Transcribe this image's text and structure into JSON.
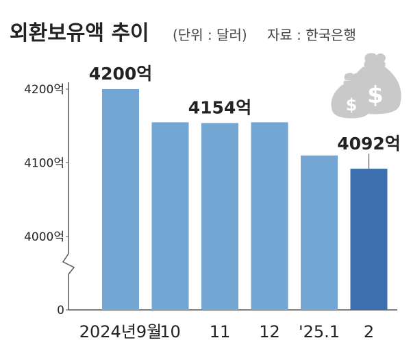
{
  "header": {
    "title": "외환보유액 추이",
    "unit_note": "(단위 : 달러)",
    "source_note": "자료 : 한국은행"
  },
  "icon": "money-bags-icon",
  "colors": {
    "bar": "#73a6d3",
    "bar_highlight": "#3d6fae",
    "axis": "#555555",
    "text": "#222222",
    "icon": "#c9c9c9"
  },
  "chart_data": {
    "type": "bar",
    "categories": [
      "2024년9월",
      "10",
      "11",
      "12",
      "'25.1",
      "2"
    ],
    "values": [
      4200,
      4155,
      4154,
      4155,
      4110,
      4092
    ],
    "value_unit": "억",
    "highlight_index": 5,
    "labeled_points": [
      {
        "index": 0,
        "label": "4200억"
      },
      {
        "index": 2,
        "label": "4154억"
      },
      {
        "index": 5,
        "label": "4092억"
      }
    ],
    "y_ticks": [
      {
        "value": 4200,
        "label": "4200억"
      },
      {
        "value": 4100,
        "label": "4100억"
      },
      {
        "value": 4000,
        "label": "4000억"
      },
      {
        "value": 0,
        "label": "0"
      }
    ],
    "axis_break": true,
    "ylim": [
      3920,
      4230
    ]
  }
}
